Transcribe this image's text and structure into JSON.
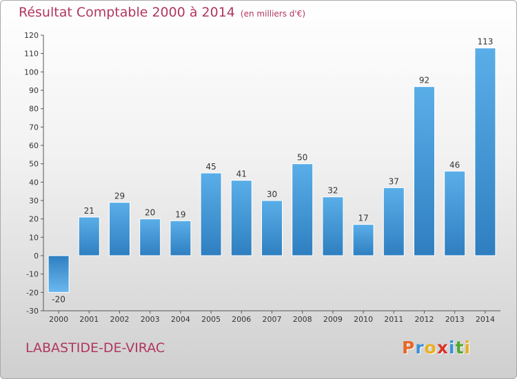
{
  "header": {
    "title": "Résultat Comptable 2000 à 2014",
    "subtitle": "(en milliers d'€)"
  },
  "footer": {
    "commune": "LABASTIDE-DE-VIRAC",
    "logo": "Proxiti",
    "logo_colors": [
      "#e8672a",
      "#3c8fd6",
      "#e8b020",
      "#d9342b",
      "#3c8fd6",
      "#52a82f",
      "#e8b020"
    ]
  },
  "colors": {
    "bar_top": "#5aaee8",
    "bar_bottom": "#2f7fc0",
    "negative_top": "#2f7fc0",
    "negative_bottom": "#6ab8ee",
    "text": "#333333",
    "accent": "#b0365f"
  },
  "chart_data": {
    "type": "bar",
    "title": "Résultat Comptable 2000 à 2014",
    "subtitle": "(en milliers d'€)",
    "categories": [
      "2000",
      "2001",
      "2002",
      "2003",
      "2004",
      "2005",
      "2006",
      "2007",
      "2008",
      "2009",
      "2010",
      "2011",
      "2012",
      "2013",
      "2014"
    ],
    "values": [
      -20,
      21,
      29,
      20,
      19,
      45,
      41,
      30,
      50,
      32,
      17,
      37,
      92,
      46,
      113
    ],
    "ylim": [
      -30,
      120
    ],
    "yticks": [
      -30,
      -20,
      -10,
      0,
      10,
      20,
      30,
      40,
      50,
      60,
      70,
      80,
      90,
      100,
      110,
      120
    ],
    "xlabel": "",
    "ylabel": "",
    "grid": false,
    "data_labels": true
  }
}
